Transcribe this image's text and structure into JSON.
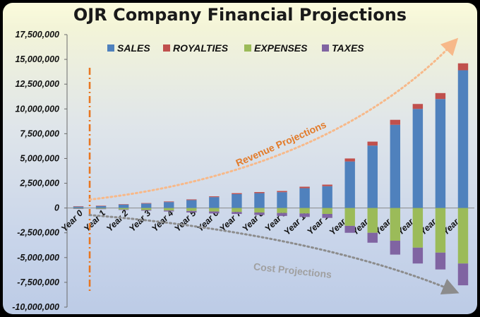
{
  "chart_data": {
    "type": "bar",
    "stacked": true,
    "title": "OJR Company Financial Projections",
    "xlabel": "",
    "ylabel": "",
    "ylim": [
      -10000000,
      17500000
    ],
    "yticks": [
      17500000,
      15000000,
      12500000,
      10000000,
      7500000,
      5000000,
      2500000,
      0,
      -2500000,
      -5000000,
      -7500000,
      -10000000
    ],
    "ytick_labels": [
      "17,500,000",
      "15,000,000",
      "12,500,000",
      "10,000,000",
      "7,500,000",
      "5,000,000",
      "2,500,000",
      "0",
      "-2,500,000",
      "-5,000,000",
      "-7,500,000",
      "-10,000,000"
    ],
    "categories": [
      "Year 0",
      "Year 1",
      "Year 2",
      "Year 3",
      "Year 4",
      "Year 5",
      "Year 6",
      "Year 7",
      "Year 8",
      "Year 9",
      "Year 10",
      "Year 11",
      "Year 12",
      "Year 13",
      "Year 14",
      "Year 15",
      "Year 16",
      "Year 17"
    ],
    "series": [
      {
        "name": "SALES",
        "color": "#4f81bd",
        "values": [
          150000,
          200000,
          350000,
          450000,
          600000,
          800000,
          1100000,
          1400000,
          1500000,
          1600000,
          2000000,
          2200000,
          4700000,
          6300000,
          8400000,
          10000000,
          11000000,
          13900000
        ]
      },
      {
        "name": "ROYALTIES",
        "color": "#c0504d",
        "values": [
          20000,
          30000,
          40000,
          50000,
          60000,
          70000,
          80000,
          100000,
          110000,
          120000,
          150000,
          160000,
          300000,
          400000,
          500000,
          500000,
          600000,
          700000
        ]
      },
      {
        "name": "EXPENSES",
        "color": "#9bbb59",
        "values": [
          -50000,
          -70000,
          -150000,
          -200000,
          -250000,
          -300000,
          -350000,
          -400000,
          -450000,
          -500000,
          -550000,
          -600000,
          -1800000,
          -2500000,
          -3300000,
          -4000000,
          -4500000,
          -5600000
        ]
      },
      {
        "name": "TAXES",
        "color": "#8064a2",
        "values": [
          -20000,
          -30000,
          -50000,
          -70000,
          -100000,
          -150000,
          -200000,
          -200000,
          -250000,
          -300000,
          -350000,
          -400000,
          -700000,
          -1000000,
          -1400000,
          -1600000,
          -1700000,
          -2200000
        ]
      }
    ],
    "legend_position": "top",
    "annotations": {
      "revenue": "Revenue Projections",
      "cost": "Cost Projections"
    },
    "colors": {
      "revenue_arrow": "#f7b98a",
      "cost_arrow": "#8c8c8c",
      "revenue_text": "#e27b2a",
      "cost_text": "#a0a0a0",
      "marker_line": "#e87722"
    }
  }
}
